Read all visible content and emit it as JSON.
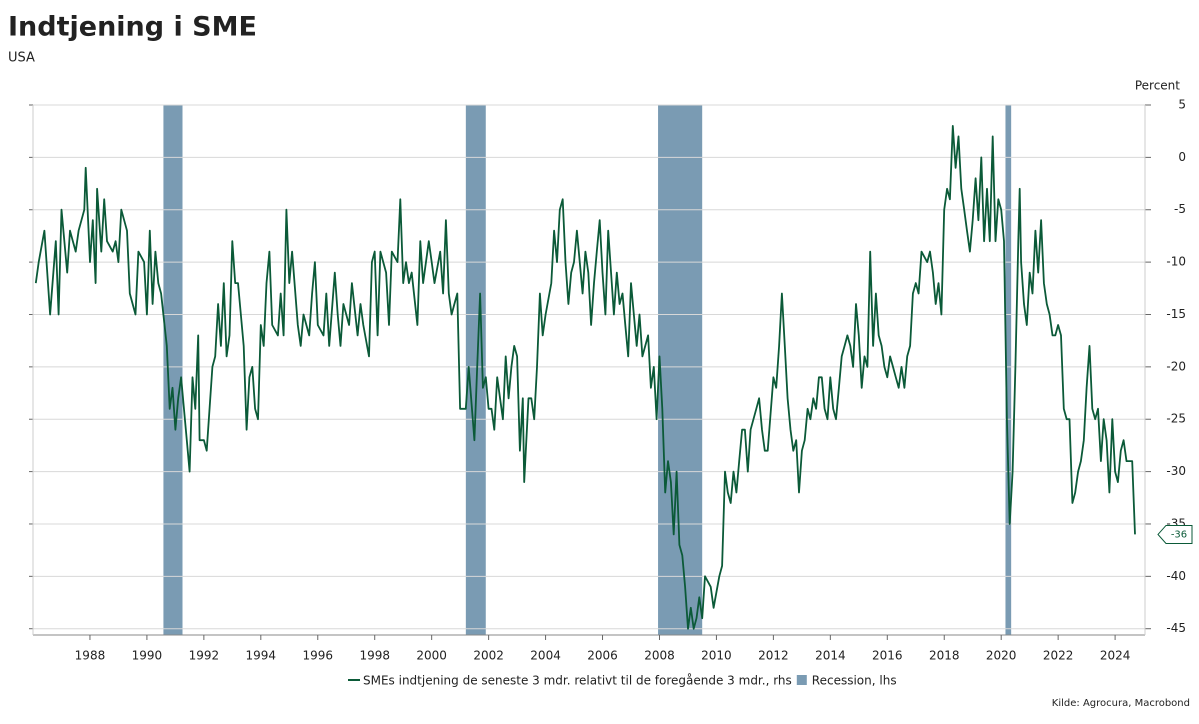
{
  "chart_data": {
    "type": "line",
    "title": "Indtjening i SME",
    "subtitle": "USA",
    "y_label": "Percent",
    "source": "Kilde: Agrocura, Macrobond",
    "xlim": [
      1986.0,
      2025.05
    ],
    "xticks": [
      1988,
      1990,
      1992,
      1994,
      1996,
      1998,
      2000,
      2002,
      2004,
      2006,
      2008,
      2010,
      2012,
      2014,
      2016,
      2018,
      2020,
      2022,
      2024
    ],
    "ylim": [
      -45.6,
      5
    ],
    "yticks": [
      5,
      0,
      -5,
      -10,
      -15,
      -20,
      -25,
      -30,
      -35,
      -40,
      -45
    ],
    "grid": true,
    "series": [
      {
        "name": "SMEs indtjening de seneste 3 mdr. relativt til de foregående 3 mdr., rhs",
        "color": "#0b5a38",
        "x": [
          1986.1,
          1986.2,
          1986.4,
          1986.6,
          1986.8,
          1986.9,
          1987.0,
          1987.2,
          1987.3,
          1987.5,
          1987.6,
          1987.8,
          1987.85,
          1988.0,
          1988.1,
          1988.2,
          1988.25,
          1988.4,
          1988.5,
          1988.6,
          1988.8,
          1988.9,
          1989.0,
          1989.1,
          1989.3,
          1989.4,
          1989.6,
          1989.7,
          1989.9,
          1990.0,
          1990.1,
          1990.2,
          1990.3,
          1990.4,
          1990.5,
          1990.7,
          1990.8,
          1990.9,
          1991.0,
          1991.1,
          1991.2,
          1991.4,
          1991.5,
          1991.6,
          1991.7,
          1991.8,
          1991.85,
          1992.0,
          1992.1,
          1992.3,
          1992.4,
          1992.5,
          1992.6,
          1992.7,
          1992.8,
          1992.9,
          1993.0,
          1993.1,
          1993.2,
          1993.4,
          1993.5,
          1993.6,
          1993.7,
          1993.8,
          1993.9,
          1994.0,
          1994.1,
          1994.2,
          1994.3,
          1994.4,
          1994.6,
          1994.7,
          1994.8,
          1994.9,
          1995.0,
          1995.1,
          1995.3,
          1995.4,
          1995.5,
          1995.7,
          1995.8,
          1995.9,
          1996.0,
          1996.2,
          1996.3,
          1996.4,
          1996.6,
          1996.7,
          1996.8,
          1996.9,
          1997.1,
          1997.2,
          1997.4,
          1997.5,
          1997.6,
          1997.8,
          1997.9,
          1998.0,
          1998.1,
          1998.2,
          1998.4,
          1998.5,
          1998.6,
          1998.8,
          1998.9,
          1999.0,
          1999.1,
          1999.2,
          1999.3,
          1999.5,
          1999.6,
          1999.7,
          1999.9,
          2000.0,
          2000.1,
          2000.3,
          2000.4,
          2000.5,
          2000.6,
          2000.7,
          2000.8,
          2000.9,
          2001.0,
          2001.2,
          2001.3,
          2001.5,
          2001.6,
          2001.7,
          2001.8,
          2001.9,
          2002.0,
          2002.1,
          2002.2,
          2002.3,
          2002.5,
          2002.6,
          2002.7,
          2002.8,
          2002.9,
          2003.0,
          2003.1,
          2003.2,
          2003.25,
          2003.4,
          2003.5,
          2003.6,
          2003.7,
          2003.8,
          2003.9,
          2004.0,
          2004.2,
          2004.3,
          2004.4,
          2004.5,
          2004.6,
          2004.7,
          2004.8,
          2004.9,
          2005.0,
          2005.1,
          2005.3,
          2005.4,
          2005.5,
          2005.6,
          2005.7,
          2005.8,
          2005.9,
          2006.0,
          2006.1,
          2006.2,
          2006.4,
          2006.5,
          2006.6,
          2006.7,
          2006.8,
          2006.9,
          2007.0,
          2007.2,
          2007.3,
          2007.4,
          2007.6,
          2007.7,
          2007.8,
          2007.9,
          2008.0,
          2008.1,
          2008.2,
          2008.3,
          2008.4,
          2008.5,
          2008.6,
          2008.7,
          2008.8,
          2008.9,
          2009.0,
          2009.1,
          2009.2,
          2009.3,
          2009.4,
          2009.5,
          2009.6,
          2009.8,
          2009.9,
          2010.1,
          2010.2,
          2010.3,
          2010.4,
          2010.5,
          2010.6,
          2010.7,
          2010.8,
          2010.9,
          2011.0,
          2011.1,
          2011.2,
          2011.4,
          2011.5,
          2011.6,
          2011.7,
          2011.8,
          2012.0,
          2012.1,
          2012.2,
          2012.3,
          2012.4,
          2012.5,
          2012.6,
          2012.7,
          2012.8,
          2012.9,
          2013.0,
          2013.1,
          2013.2,
          2013.3,
          2013.4,
          2013.5,
          2013.6,
          2013.7,
          2013.8,
          2013.9,
          2014.0,
          2014.1,
          2014.2,
          2014.3,
          2014.4,
          2014.5,
          2014.6,
          2014.7,
          2014.8,
          2014.9,
          2015.0,
          2015.1,
          2015.2,
          2015.3,
          2015.4,
          2015.5,
          2015.6,
          2015.7,
          2015.8,
          2015.9,
          2016.0,
          2016.1,
          2016.2,
          2016.3,
          2016.4,
          2016.5,
          2016.6,
          2016.7,
          2016.8,
          2016.9,
          2017.0,
          2017.1,
          2017.2,
          2017.4,
          2017.5,
          2017.6,
          2017.7,
          2017.8,
          2017.9,
          2018.0,
          2018.1,
          2018.2,
          2018.3,
          2018.4,
          2018.5,
          2018.6,
          2018.7,
          2018.8,
          2018.9,
          2019.0,
          2019.1,
          2019.2,
          2019.3,
          2019.4,
          2019.5,
          2019.6,
          2019.7,
          2019.8,
          2019.9,
          2020.0,
          2020.1,
          2020.2,
          2020.3,
          2020.4,
          2020.5,
          2020.6,
          2020.65,
          2020.7,
          2020.8,
          2020.9,
          2021.0,
          2021.1,
          2021.2,
          2021.3,
          2021.4,
          2021.5,
          2021.6,
          2021.7,
          2021.8,
          2021.9,
          2022.0,
          2022.1,
          2022.2,
          2022.3,
          2022.4,
          2022.5,
          2022.6,
          2022.7,
          2022.8,
          2022.9,
          2023.0,
          2023.1,
          2023.2,
          2023.3,
          2023.4,
          2023.5,
          2023.6,
          2023.7,
          2023.8,
          2023.9,
          2024.0,
          2024.1,
          2024.2,
          2024.3,
          2024.4,
          2024.6,
          2024.7
        ],
        "values": [
          -12,
          -10,
          -7,
          -15,
          -8,
          -15,
          -5,
          -11,
          -7,
          -9,
          -7,
          -5,
          -1,
          -10,
          -6,
          -12,
          -3,
          -9,
          -4,
          -8,
          -9,
          -8,
          -10,
          -5,
          -7,
          -13,
          -15,
          -9,
          -10,
          -15,
          -7,
          -14,
          -9,
          -12,
          -13,
          -18,
          -24,
          -22,
          -26,
          -23,
          -21,
          -27,
          -30,
          -21,
          -24,
          -17,
          -27,
          -27,
          -28,
          -20,
          -19,
          -14,
          -18,
          -12,
          -19,
          -17,
          -8,
          -12,
          -12,
          -18,
          -26,
          -21,
          -20,
          -24,
          -25,
          -16,
          -18,
          -12,
          -9,
          -16,
          -17,
          -13,
          -17,
          -5,
          -12,
          -9,
          -16,
          -18,
          -15,
          -17,
          -13,
          -10,
          -16,
          -17,
          -13,
          -18,
          -11,
          -15,
          -18,
          -14,
          -16,
          -12,
          -17,
          -14,
          -16,
          -19,
          -10,
          -9,
          -17,
          -9,
          -11,
          -16,
          -9,
          -10,
          -4,
          -12,
          -10,
          -12,
          -11,
          -16,
          -8,
          -12,
          -8,
          -10,
          -12,
          -9,
          -13,
          -6,
          -13,
          -15,
          -14,
          -13,
          -24,
          -24,
          -20,
          -27,
          -20,
          -13,
          -22,
          -21,
          -24,
          -24,
          -26,
          -21,
          -25,
          -19,
          -23,
          -20,
          -18,
          -19,
          -28,
          -23,
          -31,
          -23,
          -23,
          -25,
          -20,
          -13,
          -17,
          -15,
          -12,
          -7,
          -10,
          -5,
          -4,
          -10,
          -14,
          -11,
          -10,
          -7,
          -13,
          -9,
          -11,
          -16,
          -12,
          -9,
          -6,
          -11,
          -15,
          -7,
          -15,
          -11,
          -14,
          -13,
          -16,
          -19,
          -12,
          -18,
          -15,
          -19,
          -17,
          -22,
          -20,
          -25,
          -19,
          -24,
          -32,
          -29,
          -31,
          -36,
          -30,
          -37,
          -38,
          -41,
          -45,
          -43,
          -45,
          -44,
          -42,
          -44,
          -40,
          -41,
          -43,
          -40,
          -39,
          -30,
          -32,
          -33,
          -30,
          -32,
          -29,
          -26,
          -26,
          -30,
          -26,
          -24,
          -23,
          -26,
          -28,
          -28,
          -21,
          -22,
          -18,
          -13,
          -18,
          -23,
          -26,
          -28,
          -27,
          -32,
          -28,
          -27,
          -24,
          -25,
          -23,
          -24,
          -21,
          -21,
          -24,
          -25,
          -21,
          -24,
          -25,
          -22,
          -19,
          -18,
          -17,
          -18,
          -20,
          -14,
          -17,
          -22,
          -19,
          -20,
          -9,
          -18,
          -13,
          -17,
          -18,
          -20,
          -21,
          -19,
          -20,
          -21,
          -22,
          -20,
          -22,
          -19,
          -18,
          -13,
          -12,
          -13,
          -9,
          -10,
          -9,
          -11,
          -14,
          -12,
          -15,
          -5,
          -3,
          -4,
          3,
          -1,
          2,
          -3,
          -5,
          -7,
          -9,
          -6,
          -2,
          -6,
          0,
          -8,
          -3,
          -8,
          2,
          -8,
          -4,
          -5,
          -8,
          -25,
          -35,
          -30,
          -20,
          -8,
          -3,
          -10,
          -14,
          -16,
          -11,
          -13,
          -7,
          -11,
          -6,
          -12,
          -14,
          -15,
          -17,
          -17,
          -16,
          -17,
          -24,
          -25,
          -25,
          -33,
          -32,
          -30,
          -29,
          -27,
          -22,
          -18,
          -24,
          -25,
          -24,
          -29,
          -25,
          -27,
          -32,
          -25,
          -30,
          -31,
          -28,
          -27,
          -29,
          -29,
          -36
        ]
      },
      {
        "name": "Recession, lhs",
        "color": "#7a9bb3",
        "type": "band",
        "ranges": [
          [
            1990.58,
            1991.25
          ],
          [
            2001.2,
            2001.9
          ],
          [
            2007.95,
            2009.5
          ],
          [
            2020.15,
            2020.35
          ]
        ]
      }
    ]
  }
}
